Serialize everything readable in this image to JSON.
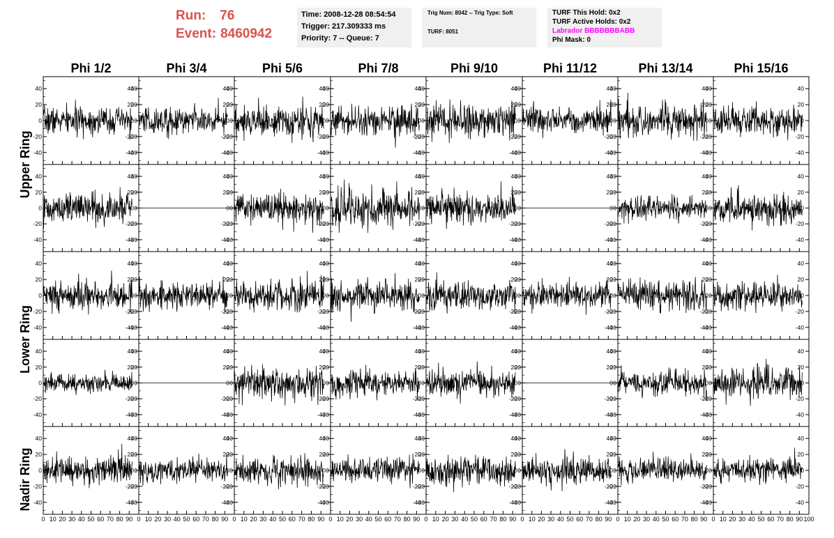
{
  "header": {
    "run_label": "Run:",
    "run_value": "76",
    "event_label": "Event:",
    "event_value": "8460942"
  },
  "panel_time": {
    "time": "Time: 2008-12-28 08:54:54",
    "trigger": "Trigger: 217.309333 ms",
    "priority": "Priority: 7 -- Queue: 7"
  },
  "panel_trig": {
    "trig": "Trig Num: 8042 -- Trig Type: Soft",
    "turf": "TURF: 8051"
  },
  "panel_turf": {
    "hold": "TURF This Hold: 0x2",
    "active": "TURF Active Holds: 0x2",
    "labrador": "Labrador BBBBBBBABB",
    "phimask": "Phi Mask: 0"
  },
  "chart_data": {
    "type": "line",
    "columns": [
      "Phi 1/2",
      "Phi 3/4",
      "Phi 5/6",
      "Phi 7/8",
      "Phi 9/10",
      "Phi 11/12",
      "Phi 13/14",
      "Phi 15/16"
    ],
    "rows": [
      "Upper Ring",
      "Upper Ring",
      "Lower Ring",
      "Lower Ring",
      "Nadir Ring"
    ],
    "row_labels": [
      "Upper Ring",
      "Lower Ring",
      "Nadir Ring"
    ],
    "xlim": [
      0,
      100
    ],
    "ylim": [
      -55,
      55
    ],
    "x_ticks": [
      0,
      10,
      20,
      30,
      40,
      50,
      60,
      70,
      80,
      90,
      100
    ],
    "x_tick_labels": [
      "0",
      "10",
      "20",
      "30",
      "40",
      "50",
      "60",
      "70",
      "80",
      "90",
      "100"
    ],
    "y_ticks": [
      -40,
      -20,
      0,
      20,
      40
    ],
    "samples_per_trace": 260,
    "trace_x_range": [
      0,
      93
    ],
    "flat_panels": [
      [
        1,
        1
      ],
      [
        1,
        5
      ],
      [
        3,
        1
      ],
      [
        3,
        5
      ]
    ],
    "amplitudes": [
      [
        14,
        14,
        16,
        15,
        18,
        14,
        17,
        14
      ],
      [
        16,
        0,
        16,
        20,
        16,
        0,
        12,
        16
      ],
      [
        16,
        14,
        16,
        16,
        16,
        14,
        16,
        14
      ],
      [
        10,
        0,
        16,
        13,
        14,
        0,
        13,
        16
      ],
      [
        15,
        12,
        15,
        13,
        14,
        14,
        13,
        12
      ]
    ],
    "grid": false
  }
}
